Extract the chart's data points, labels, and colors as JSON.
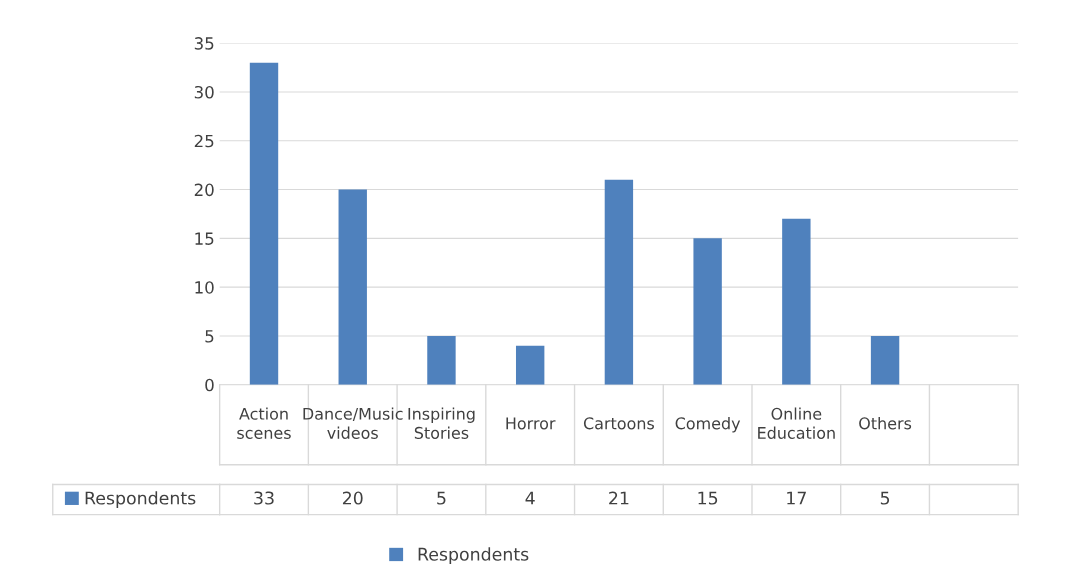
{
  "chart_data": {
    "type": "bar",
    "categories": [
      "Action scenes",
      "Dance/Music videos",
      "Inspiring Stories",
      "Horror",
      "Cartoons",
      "Comedy",
      "Online Education",
      "Others",
      null
    ],
    "series": [
      {
        "name": "Respondents",
        "color": "#4f81bd",
        "values": [
          33,
          20,
          5,
          4,
          21,
          15,
          17,
          5,
          null
        ]
      }
    ],
    "ylim": [
      0,
      35
    ],
    "yticks": [
      0,
      5,
      10,
      15,
      20,
      25,
      30,
      35
    ],
    "grid": "y",
    "legend": "bottom",
    "data_labels": true
  }
}
